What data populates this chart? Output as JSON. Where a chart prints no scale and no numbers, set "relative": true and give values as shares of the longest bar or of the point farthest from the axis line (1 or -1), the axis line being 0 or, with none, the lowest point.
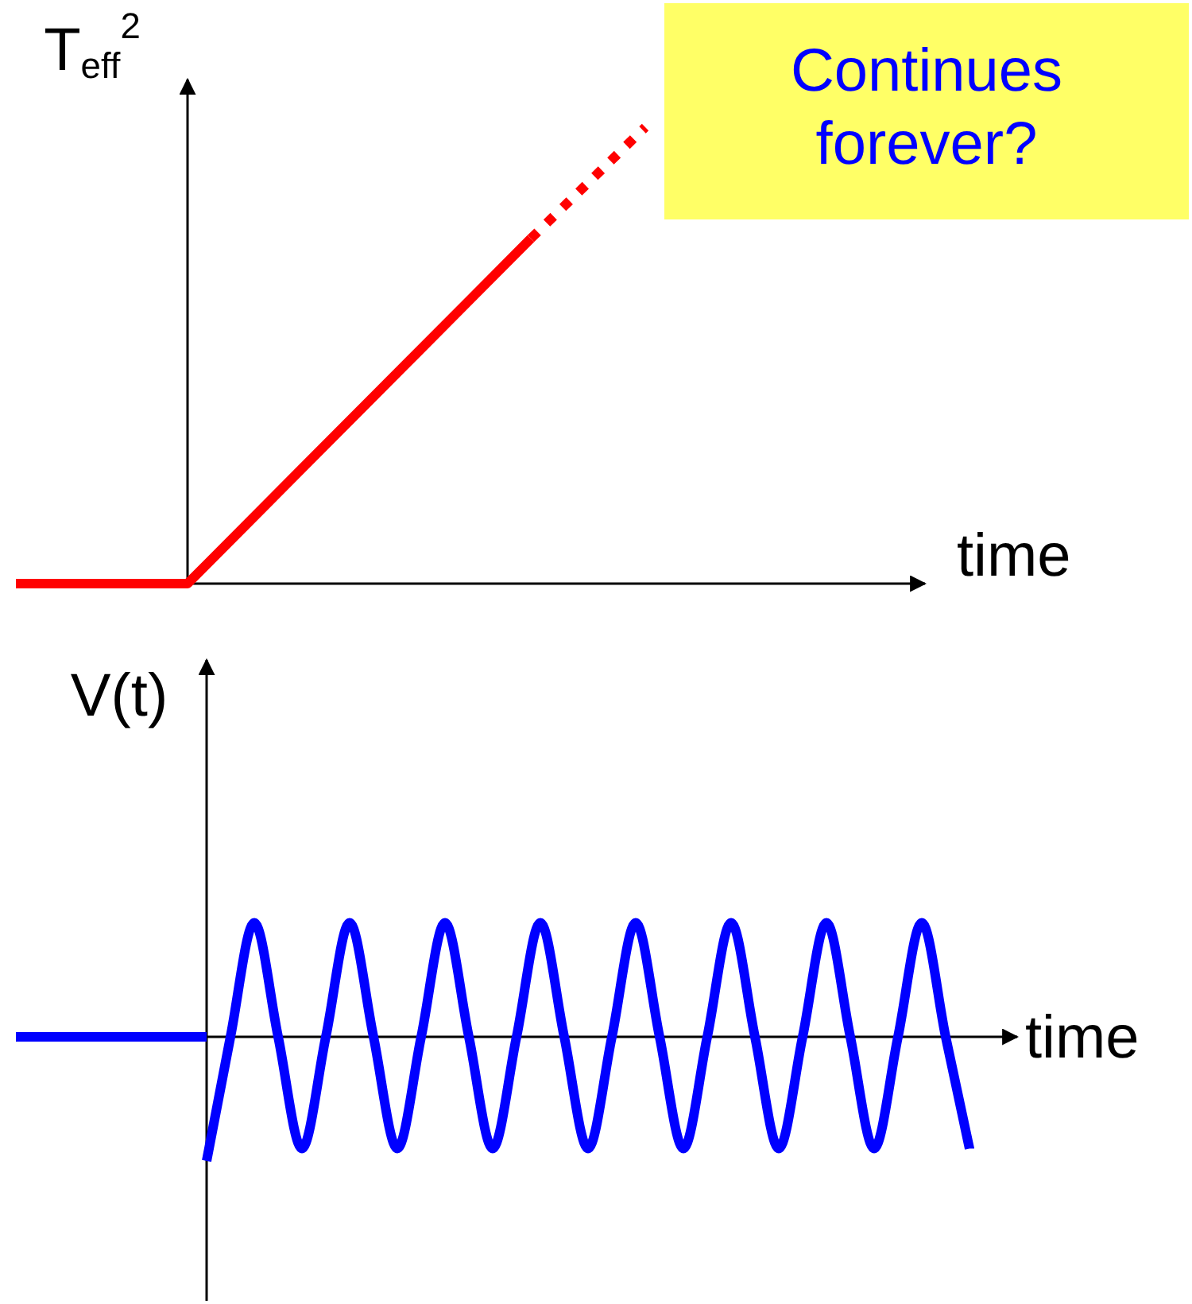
{
  "chart_data": [
    {
      "type": "line",
      "relative": true,
      "ylabel": "T$_{eff}$$^{2}$",
      "xlabel": "time",
      "annotations": [
        "Continues forever?"
      ],
      "categories": [
        null,
        null,
        null,
        null,
        null,
        null,
        null,
        null,
        null,
        null,
        null,
        null,
        null,
        null,
        null,
        null
      ],
      "series": [
        {
          "color": "#ff0000",
          "line_style": "solid",
          "values": [
            0,
            0,
            0,
            0,
            0.126,
            0.252,
            0.378,
            0.504,
            0.63,
            0.756,
            null,
            null,
            null,
            null,
            null,
            null
          ]
        },
        {
          "color": "#ff0000",
          "line_style": "dotted",
          "values": [
            null,
            null,
            null,
            null,
            null,
            null,
            null,
            null,
            null,
            0.756,
            0.878,
            1.0,
            null,
            null,
            null,
            null
          ]
        }
      ]
    },
    {
      "type": "line",
      "relative": true,
      "ylabel": "V(t)",
      "xlabel": "time",
      "categories": [
        null,
        null,
        null,
        null,
        null,
        null,
        null,
        null,
        null,
        null,
        null,
        null,
        null,
        null,
        null,
        null,
        null,
        null,
        null,
        null,
        null,
        null,
        null,
        null,
        null,
        null,
        null,
        null,
        null,
        null,
        null,
        null,
        null,
        null,
        null,
        null,
        null,
        null,
        null,
        null,
        null,
        null,
        null
      ],
      "series": [
        {
          "color": "#0000ff",
          "line_style": "solid",
          "values": [
            0,
            0,
            0,
            0,
            0,
            0,
            0,
            0,
            0,
            null,
            null,
            null,
            null,
            null,
            null,
            null,
            null,
            null,
            null,
            null,
            null,
            null,
            null,
            null,
            null,
            null,
            null,
            null,
            null,
            null,
            null,
            null,
            null,
            null,
            null,
            null,
            null,
            null,
            null,
            null,
            null,
            null,
            null
          ]
        },
        {
          "color": "#0000ff",
          "line_style": "solid",
          "values": [
            null,
            null,
            null,
            null,
            null,
            null,
            null,
            null,
            -1,
            0,
            0.92,
            0,
            -0.9,
            0,
            0.92,
            0,
            -0.9,
            0,
            0.92,
            0,
            -0.9,
            0,
            0.92,
            0,
            -0.9,
            0,
            0.92,
            0,
            -0.9,
            0,
            0.92,
            0,
            -0.9,
            0,
            0.92,
            0,
            -0.9,
            0,
            0.92,
            0,
            -0.9,
            null,
            null
          ]
        }
      ]
    }
  ]
}
